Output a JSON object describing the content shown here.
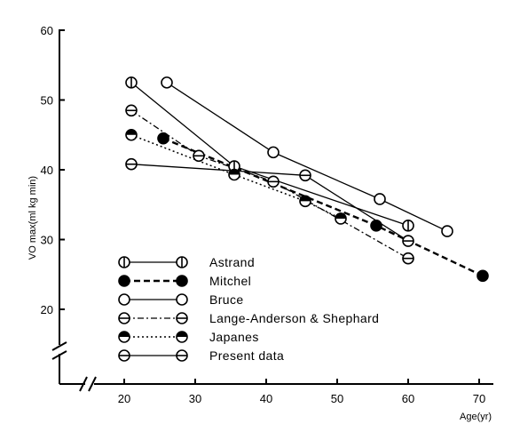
{
  "chart_data": {
    "type": "line",
    "title": "",
    "xlabel": "Age(yr)",
    "ylabel": "VO max(ml kg min)",
    "xlim": [
      10,
      72
    ],
    "ylim": [
      10,
      61
    ],
    "x_ticks": [
      "20",
      "30",
      "40",
      "50",
      "60",
      "70"
    ],
    "y_ticks": [
      "20",
      "30",
      "40",
      "50",
      "60"
    ],
    "grid": false,
    "legend_position": "bottom-left",
    "series": [
      {
        "name": "Astrand",
        "marker": "circle-vertical-bar",
        "line_style": "solid",
        "points": [
          [
            21,
            52.5
          ],
          [
            35.5,
            40.5
          ],
          [
            60,
            32
          ]
        ]
      },
      {
        "name": "Mitchel",
        "marker": "filled-circle",
        "line_style": "dashed",
        "points": [
          [
            25.5,
            44.5
          ],
          [
            55.5,
            32
          ],
          [
            70.5,
            24.8
          ]
        ]
      },
      {
        "name": "Bruce",
        "marker": "open-circle",
        "line_style": "solid",
        "points": [
          [
            26,
            52.5
          ],
          [
            41,
            42.5
          ],
          [
            56,
            35.8
          ],
          [
            65.5,
            31.2
          ]
        ]
      },
      {
        "name": "Lange-Anderson & Shephard",
        "marker": "circle-horizontal-bar",
        "line_style": "dash-dot",
        "points": [
          [
            21,
            48.5
          ],
          [
            30.5,
            42
          ],
          [
            41,
            38.3
          ],
          [
            60,
            27.3
          ]
        ]
      },
      {
        "name": "Japanes",
        "marker": "half-filled-circle",
        "line_style": "dotted",
        "points": [
          [
            21,
            45
          ],
          [
            35.5,
            39.3
          ],
          [
            45.5,
            35.5
          ],
          [
            50.5,
            33
          ]
        ]
      },
      {
        "name": "Present data",
        "marker": "circle-horizontal-bar",
        "line_style": "solid",
        "points": [
          [
            21,
            40.8
          ],
          [
            45.5,
            39.2
          ],
          [
            60,
            29.8
          ]
        ]
      }
    ]
  }
}
